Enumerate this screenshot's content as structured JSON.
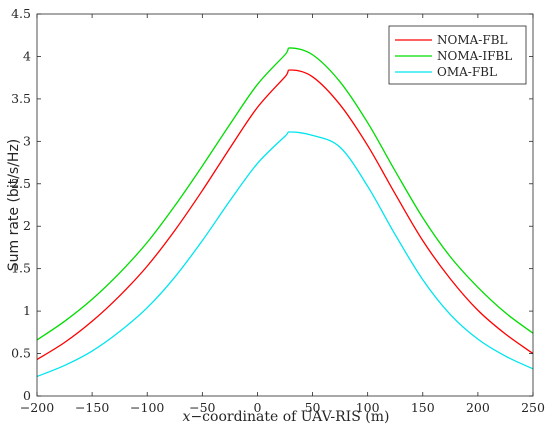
{
  "chart_data": {
    "type": "line",
    "title": "",
    "xlabel": "x−coordinate of UAV-RIS (m)",
    "xlabel_var": "x",
    "xlabel_rest": "−coordinate of UAV-RIS (m)",
    "ylabel": "Sum rate (bit/s/Hz)",
    "xlim": [
      -200,
      250
    ],
    "ylim": [
      0,
      4.5
    ],
    "xticks": [
      "−200",
      "−150",
      "−100",
      "−50",
      "0",
      "50",
      "100",
      "150",
      "200",
      "250"
    ],
    "yticks": [
      "0",
      "0.5",
      "1",
      "1.5",
      "2",
      "2.5",
      "3",
      "3.5",
      "4",
      "4.5"
    ],
    "legend_position": "top-right",
    "grid": false,
    "x": [
      -200,
      -175,
      -150,
      -125,
      -100,
      -75,
      -50,
      -25,
      0,
      25,
      30,
      50,
      75,
      100,
      125,
      150,
      175,
      200,
      225,
      250
    ],
    "series": [
      {
        "name": "NOMA-FBL",
        "color": "#ff0000",
        "values": [
          0.43,
          0.63,
          0.88,
          1.18,
          1.53,
          1.95,
          2.42,
          2.92,
          3.4,
          3.76,
          3.84,
          3.76,
          3.43,
          2.95,
          2.38,
          1.83,
          1.38,
          1.01,
          0.73,
          0.5
        ]
      },
      {
        "name": "NOMA-IFBL",
        "color": "#00dd00",
        "values": [
          0.66,
          0.88,
          1.14,
          1.45,
          1.81,
          2.24,
          2.71,
          3.2,
          3.67,
          4.02,
          4.1,
          4.02,
          3.7,
          3.22,
          2.65,
          2.1,
          1.64,
          1.28,
          0.98,
          0.74
        ]
      },
      {
        "name": "OMA-FBL",
        "color": "#00e5ee",
        "values": [
          0.23,
          0.36,
          0.53,
          0.76,
          1.04,
          1.4,
          1.83,
          2.3,
          2.74,
          3.06,
          3.11,
          3.07,
          2.93,
          2.47,
          1.9,
          1.37,
          0.96,
          0.67,
          0.47,
          0.32
        ]
      }
    ]
  }
}
